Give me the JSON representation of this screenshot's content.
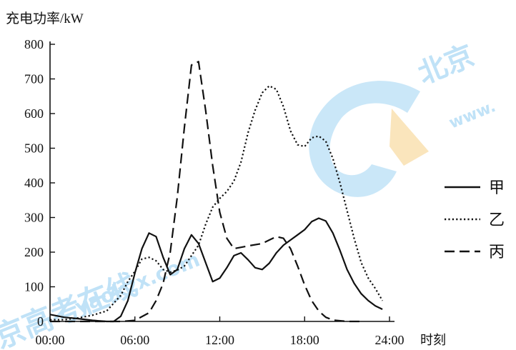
{
  "chart_data": {
    "type": "line",
    "ylabel": "充电功率/kW",
    "xlabel": "时刻",
    "ylim": [
      0,
      800
    ],
    "xlim": [
      0,
      24
    ],
    "yticks": [
      0,
      100,
      200,
      300,
      400,
      500,
      600,
      700,
      800
    ],
    "xticks": [
      0,
      6,
      12,
      18,
      24
    ],
    "xtick_labels": [
      "00:00",
      "06:00",
      "12:00",
      "18:00",
      "24:00"
    ],
    "grid": false,
    "legend_position": "right",
    "watermark": "北京高考在线 www.gaokzx.com",
    "series": [
      {
        "name": "甲",
        "style": "solid",
        "points": [
          [
            0,
            20
          ],
          [
            1,
            12
          ],
          [
            2,
            8
          ],
          [
            3,
            3
          ],
          [
            4,
            0
          ],
          [
            4.5,
            0
          ],
          [
            5,
            15
          ],
          [
            5.5,
            60
          ],
          [
            6,
            140
          ],
          [
            6.5,
            210
          ],
          [
            7,
            255
          ],
          [
            7.5,
            245
          ],
          [
            8,
            185
          ],
          [
            8.5,
            135
          ],
          [
            9,
            150
          ],
          [
            9.5,
            210
          ],
          [
            10,
            250
          ],
          [
            10.5,
            225
          ],
          [
            11,
            170
          ],
          [
            11.5,
            115
          ],
          [
            12,
            125
          ],
          [
            12.5,
            155
          ],
          [
            13,
            190
          ],
          [
            13.5,
            198
          ],
          [
            14,
            178
          ],
          [
            14.5,
            155
          ],
          [
            15,
            150
          ],
          [
            15.5,
            168
          ],
          [
            16,
            198
          ],
          [
            16.5,
            220
          ],
          [
            17,
            235
          ],
          [
            17.5,
            250
          ],
          [
            18,
            265
          ],
          [
            18.5,
            288
          ],
          [
            19,
            298
          ],
          [
            19.5,
            290
          ],
          [
            20,
            255
          ],
          [
            20.5,
            205
          ],
          [
            21,
            150
          ],
          [
            21.5,
            110
          ],
          [
            22,
            80
          ],
          [
            22.5,
            60
          ],
          [
            23,
            45
          ],
          [
            23.5,
            35
          ]
        ]
      },
      {
        "name": "乙",
        "style": "dotted",
        "points": [
          [
            0,
            5
          ],
          [
            1,
            5
          ],
          [
            2,
            10
          ],
          [
            3,
            18
          ],
          [
            4,
            30
          ],
          [
            5,
            75
          ],
          [
            5.5,
            115
          ],
          [
            6,
            145
          ],
          [
            6.5,
            180
          ],
          [
            7,
            185
          ],
          [
            7.5,
            175
          ],
          [
            8,
            150
          ],
          [
            8.5,
            142
          ],
          [
            9,
            148
          ],
          [
            9.5,
            160
          ],
          [
            10,
            190
          ],
          [
            10.5,
            220
          ],
          [
            11,
            280
          ],
          [
            11.5,
            330
          ],
          [
            12,
            355
          ],
          [
            12.5,
            375
          ],
          [
            13,
            405
          ],
          [
            13.5,
            460
          ],
          [
            14,
            545
          ],
          [
            14.5,
            610
          ],
          [
            15,
            660
          ],
          [
            15.5,
            680
          ],
          [
            16,
            670
          ],
          [
            16.5,
            620
          ],
          [
            17,
            550
          ],
          [
            17.5,
            510
          ],
          [
            18,
            505
          ],
          [
            18.5,
            530
          ],
          [
            19,
            535
          ],
          [
            19.5,
            520
          ],
          [
            20,
            470
          ],
          [
            20.5,
            400
          ],
          [
            21,
            320
          ],
          [
            21.5,
            240
          ],
          [
            22,
            170
          ],
          [
            22.5,
            125
          ],
          [
            23,
            95
          ],
          [
            23.5,
            60
          ]
        ]
      },
      {
        "name": "丙",
        "style": "dashed",
        "points": [
          [
            0,
            0
          ],
          [
            4,
            0
          ],
          [
            5,
            0
          ],
          [
            6,
            3
          ],
          [
            7,
            25
          ],
          [
            7.5,
            60
          ],
          [
            8,
            110
          ],
          [
            8.5,
            200
          ],
          [
            9,
            360
          ],
          [
            9.5,
            560
          ],
          [
            10,
            740
          ],
          [
            10.5,
            750
          ],
          [
            11,
            610
          ],
          [
            11.5,
            450
          ],
          [
            12,
            315
          ],
          [
            12.5,
            240
          ],
          [
            13,
            210
          ],
          [
            14,
            218
          ],
          [
            15,
            225
          ],
          [
            15.5,
            235
          ],
          [
            16,
            245
          ],
          [
            16.5,
            240
          ],
          [
            17,
            210
          ],
          [
            17.5,
            160
          ],
          [
            18,
            105
          ],
          [
            18.5,
            60
          ],
          [
            19,
            30
          ],
          [
            19.5,
            12
          ],
          [
            20,
            4
          ],
          [
            21,
            0
          ],
          [
            22,
            0
          ]
        ]
      }
    ]
  }
}
